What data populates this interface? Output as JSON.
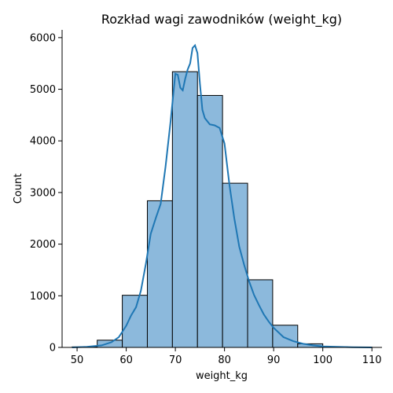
{
  "chart_data": {
    "type": "bar",
    "subtype": "histogram_with_kde",
    "title": "Rozkład wagi zawodników (weight_kg)",
    "xlabel": "weight_kg",
    "ylabel": "Count",
    "xlim": [
      46.95,
      112.05
    ],
    "ylim": [
      0,
      6150
    ],
    "xticks": [
      50,
      60,
      70,
      80,
      90,
      100,
      110
    ],
    "yticks": [
      0,
      1000,
      2000,
      3000,
      4000,
      5000,
      6000
    ],
    "bin_edges": [
      49,
      54.1,
      59.2,
      64.3,
      69.4,
      74.5,
      79.6,
      84.7,
      89.8,
      94.9,
      100,
      105.1,
      110
    ],
    "counts": [
      10,
      140,
      1010,
      2840,
      5340,
      4880,
      3180,
      1310,
      430,
      70,
      10,
      5
    ],
    "kde": {
      "x": [
        49,
        52,
        55,
        57,
        58.5,
        60,
        61,
        62,
        63,
        64,
        65,
        66,
        67,
        68,
        69,
        70,
        70.5,
        71,
        71.5,
        72,
        72.5,
        73,
        73.5,
        74,
        74.5,
        75,
        75.5,
        76,
        77,
        78,
        79,
        80,
        81,
        82,
        83,
        84,
        85,
        86,
        87,
        88,
        89,
        90,
        92,
        94,
        96,
        98,
        100,
        103,
        106,
        110
      ],
      "y": [
        0,
        10,
        40,
        100,
        200,
        420,
        620,
        780,
        1100,
        1620,
        2200,
        2500,
        2780,
        3500,
        4360,
        5300,
        5280,
        5030,
        4980,
        5200,
        5380,
        5500,
        5800,
        5850,
        5700,
        5100,
        4600,
        4440,
        4320,
        4300,
        4250,
        3950,
        3150,
        2500,
        1950,
        1600,
        1280,
        1020,
        820,
        640,
        500,
        380,
        200,
        120,
        70,
        40,
        20,
        10,
        5,
        0
      ]
    },
    "colors": {
      "bar_fill": "#8cb9dc",
      "bar_edge": "#000000",
      "kde_line": "#1f77b4"
    },
    "grid": false,
    "legend": "none"
  }
}
